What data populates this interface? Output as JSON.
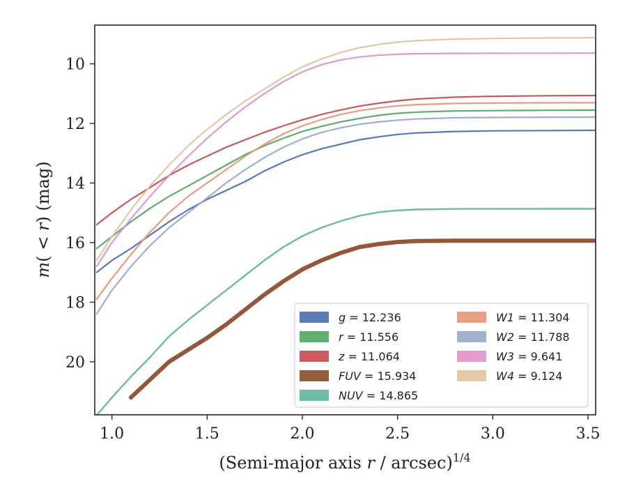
{
  "chart_data": {
    "type": "line",
    "xlabel_main": "(Semi-major axis ",
    "xlabel_var": "r",
    "xlabel_unit": " / arcsec)",
    "xlabel_exp": "1/4",
    "ylabel_m": "m",
    "ylabel_paren": "(",
    "ylabel_cmp": " < ",
    "ylabel_r": "r",
    "ylabel_close": ")",
    "ylabel_unit": " (mag)",
    "xlim": [
      0.91,
      3.54
    ],
    "ylim": [
      21.78,
      8.7
    ],
    "y_inverted": true,
    "xticks": [
      1.0,
      1.5,
      2.0,
      2.5,
      3.0,
      3.5
    ],
    "xtick_labels": [
      "1.0",
      "1.5",
      "2.0",
      "2.5",
      "3.0",
      "3.5"
    ],
    "yticks": [
      10,
      12,
      14,
      16,
      18,
      20
    ],
    "ytick_labels": [
      "10",
      "12",
      "14",
      "16",
      "18",
      "20"
    ],
    "grid": false,
    "legend_position": "lower-right",
    "series": [
      {
        "name": "g",
        "value": "12.236",
        "color": "#4c72b0",
        "width": 2.2,
        "points": [
          [
            0.92,
            17.0
          ],
          [
            1.0,
            16.6
          ],
          [
            1.1,
            16.2
          ],
          [
            1.2,
            15.75
          ],
          [
            1.3,
            15.3
          ],
          [
            1.4,
            14.9
          ],
          [
            1.5,
            14.55
          ],
          [
            1.6,
            14.25
          ],
          [
            1.7,
            13.95
          ],
          [
            1.8,
            13.6
          ],
          [
            1.9,
            13.3
          ],
          [
            2.0,
            13.05
          ],
          [
            2.1,
            12.85
          ],
          [
            2.2,
            12.7
          ],
          [
            2.3,
            12.55
          ],
          [
            2.4,
            12.45
          ],
          [
            2.5,
            12.37
          ],
          [
            2.6,
            12.32
          ],
          [
            2.8,
            12.27
          ],
          [
            3.0,
            12.25
          ],
          [
            3.3,
            12.24
          ],
          [
            3.54,
            12.23
          ]
        ]
      },
      {
        "name": "r",
        "value": "11.556",
        "color": "#55a868",
        "width": 2.2,
        "points": [
          [
            0.92,
            16.2
          ],
          [
            1.0,
            15.8
          ],
          [
            1.1,
            15.3
          ],
          [
            1.2,
            14.85
          ],
          [
            1.3,
            14.45
          ],
          [
            1.4,
            14.1
          ],
          [
            1.5,
            13.75
          ],
          [
            1.6,
            13.4
          ],
          [
            1.7,
            13.05
          ],
          [
            1.8,
            12.75
          ],
          [
            1.9,
            12.5
          ],
          [
            2.0,
            12.27
          ],
          [
            2.1,
            12.1
          ],
          [
            2.2,
            11.95
          ],
          [
            2.3,
            11.83
          ],
          [
            2.4,
            11.73
          ],
          [
            2.5,
            11.66
          ],
          [
            2.6,
            11.62
          ],
          [
            2.8,
            11.58
          ],
          [
            3.0,
            11.57
          ],
          [
            3.3,
            11.56
          ],
          [
            3.54,
            11.555
          ]
        ]
      },
      {
        "name": "z",
        "value": "11.064",
        "color": "#c44e52",
        "width": 2.2,
        "points": [
          [
            0.92,
            15.4
          ],
          [
            1.0,
            15.0
          ],
          [
            1.1,
            14.55
          ],
          [
            1.2,
            14.15
          ],
          [
            1.3,
            13.75
          ],
          [
            1.4,
            13.4
          ],
          [
            1.5,
            13.1
          ],
          [
            1.6,
            12.8
          ],
          [
            1.7,
            12.55
          ],
          [
            1.8,
            12.3
          ],
          [
            1.9,
            12.08
          ],
          [
            2.0,
            11.88
          ],
          [
            2.1,
            11.7
          ],
          [
            2.2,
            11.55
          ],
          [
            2.3,
            11.42
          ],
          [
            2.4,
            11.32
          ],
          [
            2.5,
            11.24
          ],
          [
            2.6,
            11.18
          ],
          [
            2.8,
            11.12
          ],
          [
            3.0,
            11.09
          ],
          [
            3.3,
            11.07
          ],
          [
            3.54,
            11.064
          ]
        ]
      },
      {
        "name": "FUV",
        "value": "15.934",
        "color": "#8c4f2e",
        "width": 6,
        "points": [
          [
            1.1,
            21.2
          ],
          [
            1.2,
            20.6
          ],
          [
            1.3,
            20.0
          ],
          [
            1.4,
            19.6
          ],
          [
            1.5,
            19.2
          ],
          [
            1.6,
            18.75
          ],
          [
            1.7,
            18.25
          ],
          [
            1.8,
            17.75
          ],
          [
            1.9,
            17.3
          ],
          [
            2.0,
            16.9
          ],
          [
            2.1,
            16.6
          ],
          [
            2.2,
            16.35
          ],
          [
            2.3,
            16.15
          ],
          [
            2.4,
            16.05
          ],
          [
            2.5,
            15.98
          ],
          [
            2.6,
            15.95
          ],
          [
            2.8,
            15.935
          ],
          [
            3.0,
            15.935
          ],
          [
            3.3,
            15.934
          ],
          [
            3.54,
            15.934
          ]
        ]
      },
      {
        "name": "NUV",
        "value": "14.865",
        "color": "#64b5a0",
        "width": 2.4,
        "points": [
          [
            0.92,
            21.8
          ],
          [
            1.0,
            21.2
          ],
          [
            1.1,
            20.5
          ],
          [
            1.2,
            19.85
          ],
          [
            1.3,
            19.15
          ],
          [
            1.4,
            18.6
          ],
          [
            1.5,
            18.1
          ],
          [
            1.6,
            17.6
          ],
          [
            1.7,
            17.1
          ],
          [
            1.8,
            16.6
          ],
          [
            1.9,
            16.15
          ],
          [
            2.0,
            15.78
          ],
          [
            2.1,
            15.5
          ],
          [
            2.2,
            15.28
          ],
          [
            2.3,
            15.1
          ],
          [
            2.4,
            14.98
          ],
          [
            2.5,
            14.92
          ],
          [
            2.6,
            14.89
          ],
          [
            2.8,
            14.87
          ],
          [
            3.0,
            14.867
          ],
          [
            3.3,
            14.866
          ],
          [
            3.54,
            14.865
          ]
        ]
      },
      {
        "name": "W1",
        "value": "11.304",
        "color": "#e8967a",
        "width": 2.2,
        "points": [
          [
            0.92,
            17.9
          ],
          [
            1.0,
            17.2
          ],
          [
            1.1,
            16.4
          ],
          [
            1.2,
            15.65
          ],
          [
            1.3,
            15.0
          ],
          [
            1.4,
            14.45
          ],
          [
            1.5,
            14.0
          ],
          [
            1.6,
            13.55
          ],
          [
            1.7,
            13.1
          ],
          [
            1.8,
            12.7
          ],
          [
            1.9,
            12.35
          ],
          [
            2.0,
            12.08
          ],
          [
            2.1,
            11.87
          ],
          [
            2.2,
            11.7
          ],
          [
            2.3,
            11.57
          ],
          [
            2.4,
            11.48
          ],
          [
            2.5,
            11.41
          ],
          [
            2.6,
            11.37
          ],
          [
            2.8,
            11.33
          ],
          [
            3.0,
            11.315
          ],
          [
            3.3,
            11.306
          ],
          [
            3.54,
            11.304
          ]
        ]
      },
      {
        "name": "W2",
        "value": "11.788",
        "color": "#9aa9cc",
        "width": 2.2,
        "points": [
          [
            0.92,
            18.4
          ],
          [
            1.0,
            17.6
          ],
          [
            1.1,
            16.8
          ],
          [
            1.2,
            16.1
          ],
          [
            1.3,
            15.5
          ],
          [
            1.4,
            15.0
          ],
          [
            1.5,
            14.5
          ],
          [
            1.6,
            14.0
          ],
          [
            1.7,
            13.55
          ],
          [
            1.8,
            13.15
          ],
          [
            1.9,
            12.8
          ],
          [
            2.0,
            12.52
          ],
          [
            2.1,
            12.3
          ],
          [
            2.2,
            12.15
          ],
          [
            2.3,
            12.03
          ],
          [
            2.4,
            11.95
          ],
          [
            2.5,
            11.89
          ],
          [
            2.6,
            11.85
          ],
          [
            2.8,
            11.81
          ],
          [
            3.0,
            11.8
          ],
          [
            3.3,
            11.79
          ],
          [
            3.54,
            11.788
          ]
        ]
      },
      {
        "name": "W3",
        "value": "9.641",
        "color": "#dc96c8",
        "width": 2.2,
        "points": [
          [
            0.92,
            16.8
          ],
          [
            1.0,
            16.0
          ],
          [
            1.1,
            15.2
          ],
          [
            1.2,
            14.45
          ],
          [
            1.3,
            13.75
          ],
          [
            1.4,
            13.1
          ],
          [
            1.5,
            12.5
          ],
          [
            1.6,
            11.95
          ],
          [
            1.7,
            11.45
          ],
          [
            1.8,
            11.0
          ],
          [
            1.9,
            10.6
          ],
          [
            2.0,
            10.27
          ],
          [
            2.1,
            10.03
          ],
          [
            2.2,
            9.87
          ],
          [
            2.3,
            9.77
          ],
          [
            2.4,
            9.71
          ],
          [
            2.5,
            9.68
          ],
          [
            2.6,
            9.66
          ],
          [
            2.8,
            9.65
          ],
          [
            3.0,
            9.645
          ],
          [
            3.3,
            9.642
          ],
          [
            3.54,
            9.641
          ]
        ]
      },
      {
        "name": "W4",
        "value": "9.124",
        "color": "#dfc4a0",
        "width": 2.2,
        "points": [
          [
            0.92,
            16.6
          ],
          [
            1.0,
            15.8
          ],
          [
            1.1,
            14.9
          ],
          [
            1.2,
            14.1
          ],
          [
            1.3,
            13.4
          ],
          [
            1.4,
            12.75
          ],
          [
            1.5,
            12.2
          ],
          [
            1.6,
            11.7
          ],
          [
            1.7,
            11.25
          ],
          [
            1.8,
            10.85
          ],
          [
            1.9,
            10.45
          ],
          [
            2.0,
            10.1
          ],
          [
            2.1,
            9.84
          ],
          [
            2.2,
            9.62
          ],
          [
            2.3,
            9.46
          ],
          [
            2.4,
            9.35
          ],
          [
            2.5,
            9.27
          ],
          [
            2.6,
            9.22
          ],
          [
            2.8,
            9.17
          ],
          [
            3.0,
            9.15
          ],
          [
            3.3,
            9.13
          ],
          [
            3.54,
            9.124
          ]
        ]
      }
    ],
    "legend_items": [
      {
        "label": "g",
        "value": "12.236",
        "color": "#4c72b0"
      },
      {
        "label": "r",
        "value": "11.556",
        "color": "#55a868"
      },
      {
        "label": "z",
        "value": "11.064",
        "color": "#c44e52"
      },
      {
        "label": "FUV",
        "value": "15.934",
        "color": "#8c4f2e"
      },
      {
        "label": "NUV",
        "value": "14.865",
        "color": "#64b5a0"
      },
      {
        "label": "W1",
        "value": "11.304",
        "color": "#e8967a"
      },
      {
        "label": "W2",
        "value": "11.788",
        "color": "#9aa9cc"
      },
      {
        "label": "W3",
        "value": "9.641",
        "color": "#dc96c8"
      },
      {
        "label": "W4",
        "value": "9.124",
        "color": "#dfc4a0"
      }
    ]
  }
}
